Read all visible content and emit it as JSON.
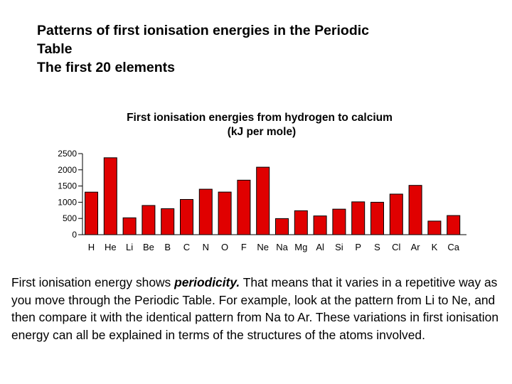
{
  "heading": {
    "line1": "Patterns of first ionisation energies in the Periodic",
    "line2": "Table",
    "line3": "The first 20 elements"
  },
  "chart_data": {
    "type": "bar",
    "title": "First ionisation energies from hydrogen to calcium",
    "subtitle": "(kJ per mole)",
    "xlabel": "",
    "ylabel": "",
    "ylim": [
      0,
      2500
    ],
    "yticks": [
      0,
      500,
      1000,
      1500,
      2000,
      2500
    ],
    "grid": false,
    "categories": [
      "H",
      "He",
      "Li",
      "Be",
      "B",
      "C",
      "N",
      "O",
      "F",
      "Ne",
      "Na",
      "Mg",
      "Al",
      "Si",
      "P",
      "S",
      "Cl",
      "Ar",
      "K",
      "Ca"
    ],
    "values": [
      1312,
      2372,
      520,
      900,
      801,
      1086,
      1402,
      1314,
      1681,
      2081,
      496,
      738,
      578,
      787,
      1012,
      1000,
      1251,
      1520,
      419,
      590
    ],
    "bar_color": "#e00000"
  },
  "body": {
    "text_before": "First ionisation energy shows ",
    "emphasis": "periodicity.",
    "text_after": " That means that it varies in a repetitive way as you move through the Periodic Table. For example, look at the pattern from Li to Ne, and then compare it with the identical pattern from Na to Ar. These variations in first ionisation energy can all be explained in terms of the structures of the atoms involved."
  }
}
